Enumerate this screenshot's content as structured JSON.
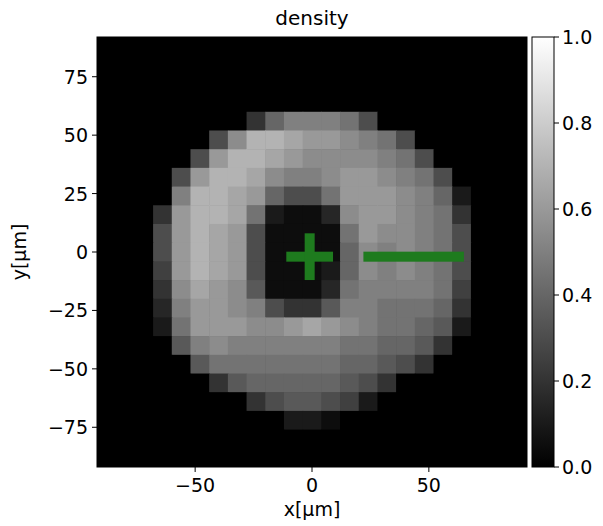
{
  "chart_data": {
    "type": "heatmap",
    "title": "density",
    "x_label": "x[µm]",
    "y_label": "y[µm]",
    "xlim": [
      -92,
      92
    ],
    "ylim": [
      -92,
      92
    ],
    "xticks": [
      {
        "value": -50,
        "label": "−50"
      },
      0,
      50
    ],
    "yticks": [
      {
        "value": -75,
        "label": "−75"
      },
      {
        "value": -50,
        "label": "−50"
      },
      {
        "value": -25,
        "label": "−25"
      },
      0,
      25,
      50,
      75
    ],
    "x": [
      -88,
      -80,
      -72,
      -64,
      -56,
      -48,
      -40,
      -32,
      -24,
      -16,
      -8,
      0,
      8,
      16,
      24,
      32,
      40,
      48,
      56,
      64,
      72,
      80,
      88
    ],
    "y": [
      88,
      80,
      72,
      64,
      56,
      48,
      40,
      32,
      24,
      16,
      8,
      0,
      -8,
      -16,
      -24,
      -32,
      -40,
      -48,
      -56,
      -64,
      -72,
      -80,
      -88
    ],
    "cells": [
      [
        0,
        0,
        0,
        0,
        0,
        0,
        0,
        0,
        0,
        0,
        0,
        0,
        0,
        0,
        0,
        0,
        0,
        0,
        0,
        0,
        0,
        0,
        0
      ],
      [
        0,
        0,
        0,
        0,
        0,
        0,
        0,
        0,
        0,
        0,
        0,
        0,
        0,
        0,
        0,
        0,
        0,
        0,
        0,
        0,
        0,
        0,
        0
      ],
      [
        0,
        0,
        0,
        0,
        0,
        0,
        0,
        0,
        0,
        0,
        0,
        0,
        0,
        0,
        0,
        0,
        0,
        0,
        0,
        0,
        0,
        0,
        0
      ],
      [
        0,
        0,
        0,
        0,
        0,
        0,
        0,
        0,
        0,
        0,
        0,
        0,
        0,
        0,
        0,
        0,
        0,
        0,
        0,
        0,
        0,
        0,
        0
      ],
      [
        0,
        0,
        0,
        0,
        0,
        0,
        0,
        0,
        0.2,
        0.4,
        0.5,
        0.5,
        0.5,
        0.45,
        0.3,
        0,
        0,
        0,
        0,
        0,
        0,
        0,
        0
      ],
      [
        0,
        0,
        0,
        0,
        0,
        0,
        0.3,
        0.55,
        0.7,
        0.7,
        0.65,
        0.6,
        0.6,
        0.55,
        0.5,
        0.45,
        0.3,
        0,
        0,
        0,
        0,
        0,
        0
      ],
      [
        0,
        0,
        0,
        0,
        0,
        0.3,
        0.6,
        0.7,
        0.7,
        0.65,
        0.6,
        0.55,
        0.55,
        0.55,
        0.55,
        0.5,
        0.45,
        0.3,
        0,
        0,
        0,
        0,
        0
      ],
      [
        0,
        0,
        0,
        0,
        0.3,
        0.6,
        0.7,
        0.7,
        0.65,
        0.55,
        0.5,
        0.5,
        0.55,
        0.6,
        0.6,
        0.55,
        0.5,
        0.45,
        0.3,
        0,
        0,
        0,
        0
      ],
      [
        0,
        0,
        0,
        0,
        0.5,
        0.7,
        0.7,
        0.65,
        0.6,
        0.4,
        0.3,
        0.3,
        0.45,
        0.6,
        0.6,
        0.6,
        0.55,
        0.5,
        0.4,
        0.1,
        0,
        0,
        0
      ],
      [
        0,
        0,
        0,
        0.2,
        0.6,
        0.7,
        0.7,
        0.65,
        0.45,
        0.1,
        0.05,
        0.05,
        0.15,
        0.55,
        0.6,
        0.6,
        0.55,
        0.5,
        0.45,
        0.2,
        0,
        0,
        0
      ],
      [
        0,
        0,
        0,
        0.3,
        0.6,
        0.7,
        0.65,
        0.6,
        0.3,
        0.05,
        0.05,
        0.05,
        0.05,
        0.45,
        0.6,
        0.55,
        0.55,
        0.5,
        0.45,
        0.3,
        0,
        0,
        0
      ],
      [
        0,
        0,
        0,
        0.3,
        0.6,
        0.7,
        0.65,
        0.6,
        0.3,
        0.05,
        0.05,
        0.05,
        0.05,
        0.4,
        0.55,
        0.5,
        0.55,
        0.5,
        0.45,
        0.3,
        0,
        0,
        0
      ],
      [
        0,
        0,
        0,
        0.25,
        0.6,
        0.7,
        0.65,
        0.6,
        0.3,
        0.05,
        0.05,
        0.05,
        0.1,
        0.4,
        0.55,
        0.5,
        0.55,
        0.5,
        0.45,
        0.3,
        0,
        0,
        0
      ],
      [
        0,
        0,
        0,
        0.2,
        0.55,
        0.65,
        0.6,
        0.55,
        0.35,
        0.05,
        0.05,
        0.05,
        0.15,
        0.45,
        0.5,
        0.5,
        0.5,
        0.5,
        0.45,
        0.25,
        0,
        0,
        0
      ],
      [
        0,
        0,
        0,
        0.15,
        0.5,
        0.6,
        0.6,
        0.55,
        0.5,
        0.3,
        0.2,
        0.2,
        0.35,
        0.5,
        0.5,
        0.45,
        0.45,
        0.45,
        0.4,
        0.2,
        0,
        0,
        0
      ],
      [
        0,
        0,
        0,
        0.1,
        0.45,
        0.6,
        0.6,
        0.6,
        0.55,
        0.55,
        0.6,
        0.65,
        0.6,
        0.55,
        0.5,
        0.45,
        0.45,
        0.4,
        0.35,
        0.1,
        0,
        0,
        0
      ],
      [
        0,
        0,
        0,
        0,
        0.35,
        0.5,
        0.55,
        0.5,
        0.5,
        0.5,
        0.5,
        0.5,
        0.5,
        0.45,
        0.45,
        0.4,
        0.4,
        0.35,
        0.2,
        0,
        0,
        0,
        0
      ],
      [
        0,
        0,
        0,
        0,
        0,
        0.35,
        0.45,
        0.45,
        0.45,
        0.45,
        0.45,
        0.45,
        0.45,
        0.4,
        0.4,
        0.35,
        0.3,
        0.2,
        0,
        0,
        0,
        0,
        0
      ],
      [
        0,
        0,
        0,
        0,
        0,
        0,
        0.2,
        0.35,
        0.4,
        0.4,
        0.4,
        0.4,
        0.4,
        0.35,
        0.3,
        0.2,
        0,
        0,
        0,
        0,
        0,
        0,
        0
      ],
      [
        0,
        0,
        0,
        0,
        0,
        0,
        0,
        0,
        0.2,
        0.3,
        0.35,
        0.35,
        0.3,
        0.25,
        0.1,
        0,
        0,
        0,
        0,
        0,
        0,
        0,
        0
      ],
      [
        0,
        0,
        0,
        0,
        0,
        0,
        0,
        0,
        0,
        0,
        0.1,
        0.1,
        0.05,
        0,
        0,
        0,
        0,
        0,
        0,
        0,
        0,
        0,
        0
      ],
      [
        0,
        0,
        0,
        0,
        0,
        0,
        0,
        0,
        0,
        0,
        0,
        0,
        0,
        0,
        0,
        0,
        0,
        0,
        0,
        0,
        0,
        0,
        0
      ],
      [
        0,
        0,
        0,
        0,
        0,
        0,
        0,
        0,
        0,
        0,
        0,
        0,
        0,
        0,
        0,
        0,
        0,
        0,
        0,
        0,
        0,
        0,
        0
      ]
    ],
    "colorbar": {
      "range": [
        0,
        1
      ],
      "ticks": [
        {
          "value": 0,
          "label": "0.0"
        },
        {
          "value": 0.2,
          "label": "0.2"
        },
        {
          "value": 0.4,
          "label": "0.4"
        },
        {
          "value": 0.6,
          "label": "0.6"
        },
        {
          "value": 0.8,
          "label": "0.8"
        },
        {
          "value": 1,
          "label": "1.0"
        }
      ]
    },
    "annotations": [
      {
        "type": "cross",
        "x": -1,
        "y": -2,
        "half_width": 10,
        "color": "#1e7b1e"
      },
      {
        "type": "segment",
        "x": [
          22,
          65
        ],
        "y": -2,
        "color": "#1e7b1e"
      }
    ]
  }
}
